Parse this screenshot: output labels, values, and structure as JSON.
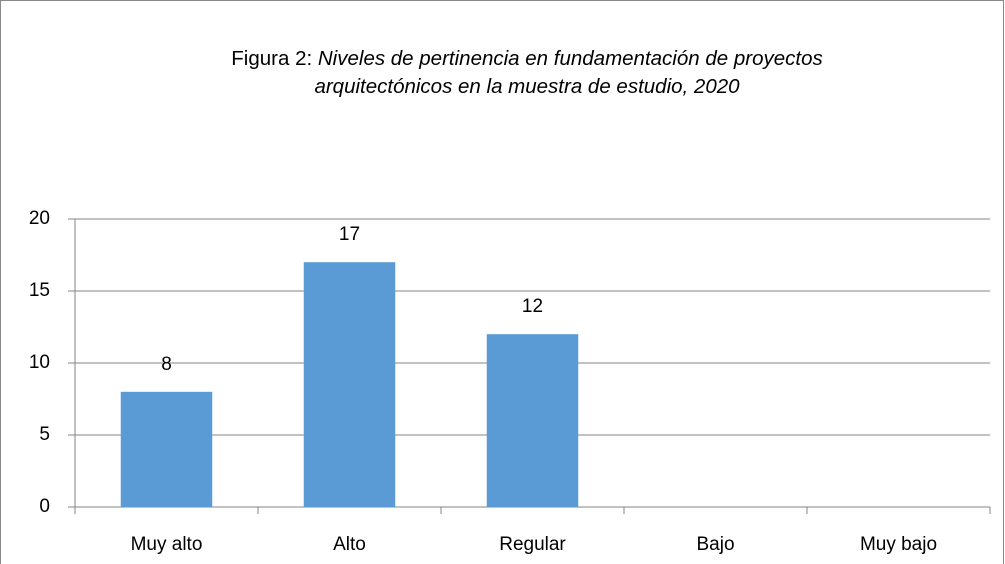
{
  "chart_data": {
    "type": "bar",
    "title": [
      "Figura 2:",
      "Niveles de pertinencia en fundamentación de proyectos arquitectónicos en la muestra de estudio, 2020"
    ],
    "categories": [
      "Muy alto",
      "Alto",
      "Regular",
      "Bajo",
      "Muy bajo"
    ],
    "values": [
      8,
      17,
      12,
      null,
      null
    ],
    "color": "#5b9bd5",
    "ylim": [
      0,
      20
    ],
    "yticks": [
      0,
      5,
      10,
      15,
      20
    ],
    "grid": true
  }
}
